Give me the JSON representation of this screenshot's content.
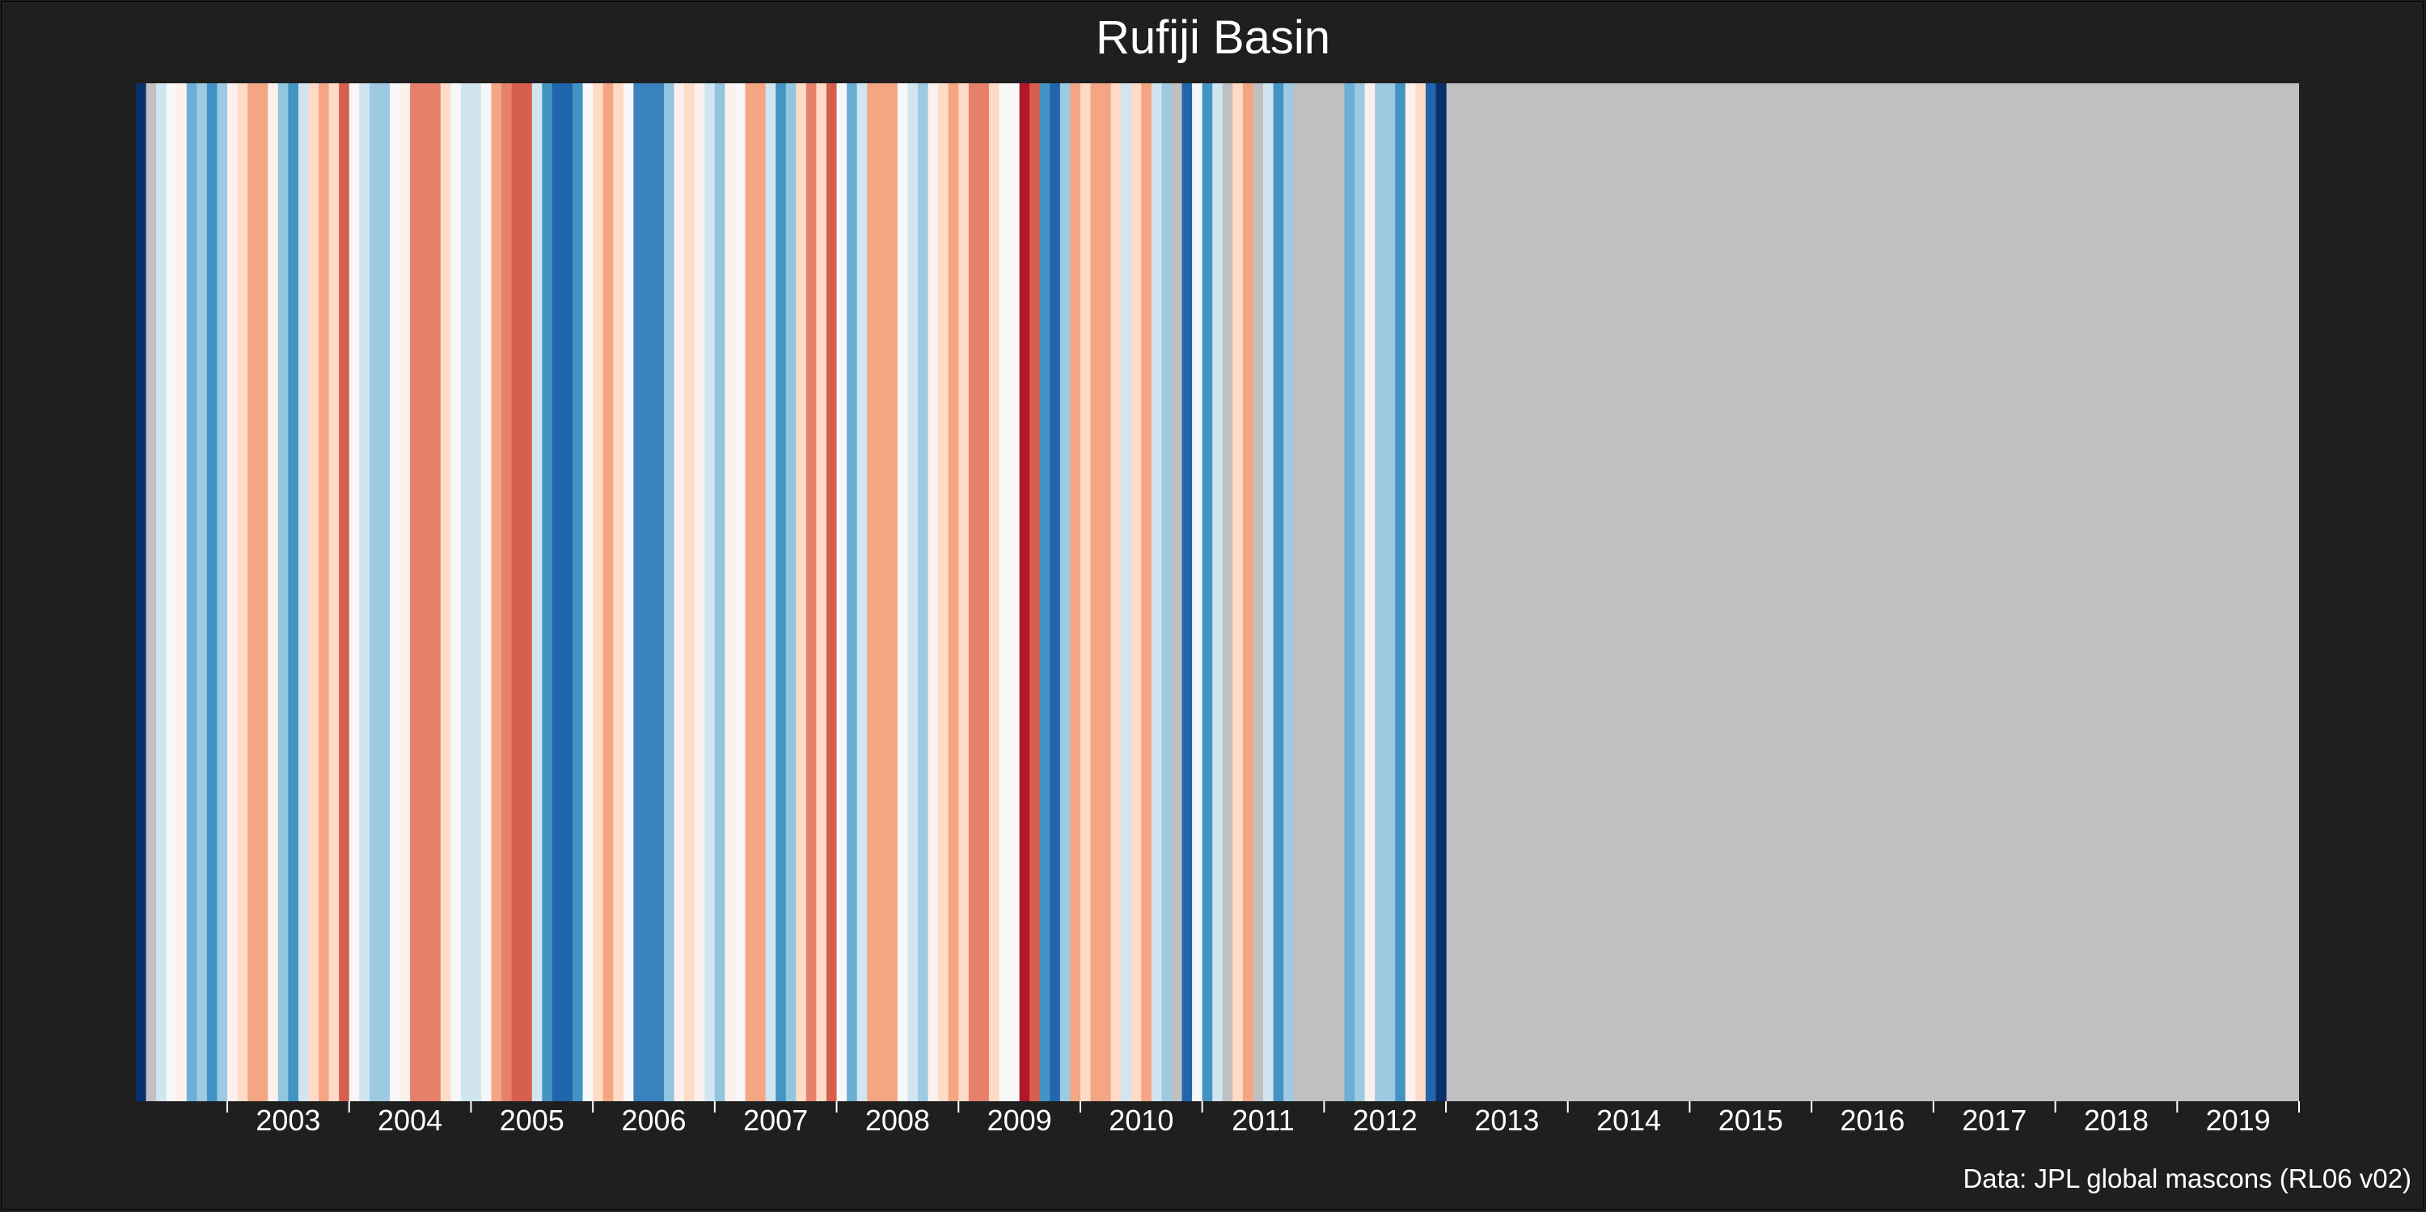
{
  "chart_data": {
    "type": "heatmap",
    "title": "Rufiji Basin",
    "source": "Data: JPL global mascons (RL06 v02)",
    "xlabel": "",
    "ylabel": "",
    "x_tick_labels": [
      "2003",
      "2004",
      "2005",
      "2006",
      "2007",
      "2008",
      "2009",
      "2010",
      "2011",
      "2012",
      "2013",
      "2014",
      "2015",
      "2016",
      "2017",
      "2018",
      "2019"
    ],
    "period_start": "2002-04",
    "period_end": "2020-01",
    "missing_color": "#c0c0c0",
    "stripes": [
      {
        "date": "2002-04",
        "color": "#08306b"
      },
      {
        "date": "2002-05",
        "color": "#c0c0c0"
      },
      {
        "date": "2002-06",
        "color": "#d1e5f0"
      },
      {
        "date": "2002-07",
        "color": "#f7f7f7"
      },
      {
        "date": "2002-08",
        "color": "#fbf1ec"
      },
      {
        "date": "2002-09",
        "color": "#6baed6"
      },
      {
        "date": "2002-10",
        "color": "#9ecae1"
      },
      {
        "date": "2002-11",
        "color": "#4292c6"
      },
      {
        "date": "2002-12",
        "color": "#9ecae1"
      },
      {
        "date": "2003-01",
        "color": "#fbf1ec"
      },
      {
        "date": "2003-02",
        "color": "#fddbc7"
      },
      {
        "date": "2003-03",
        "color": "#f4a582"
      },
      {
        "date": "2003-04",
        "color": "#f4a582"
      },
      {
        "date": "2003-05",
        "color": "#fbf1ec"
      },
      {
        "date": "2003-06",
        "color": "#92c5de"
      },
      {
        "date": "2003-07",
        "color": "#4393c3"
      },
      {
        "date": "2003-08",
        "color": "#d1e5f0"
      },
      {
        "date": "2003-09",
        "color": "#fddbc7"
      },
      {
        "date": "2003-10",
        "color": "#f4a582"
      },
      {
        "date": "2003-11",
        "color": "#fddbc7"
      },
      {
        "date": "2003-12",
        "color": "#d6604d"
      },
      {
        "date": "2004-01",
        "color": "#f7f7f7"
      },
      {
        "date": "2004-02",
        "color": "#d1e5f0"
      },
      {
        "date": "2004-03",
        "color": "#9ecae1"
      },
      {
        "date": "2004-04",
        "color": "#9ecae1"
      },
      {
        "date": "2004-05",
        "color": "#f7f7f7"
      },
      {
        "date": "2004-06",
        "color": "#fbf1ec"
      },
      {
        "date": "2004-07",
        "color": "#e7806a"
      },
      {
        "date": "2004-08",
        "color": "#e7806a"
      },
      {
        "date": "2004-09",
        "color": "#e7806a"
      },
      {
        "date": "2004-10",
        "color": "#fddbc7"
      },
      {
        "date": "2004-11",
        "color": "#f7f7f7"
      },
      {
        "date": "2004-12",
        "color": "#d1e5f0"
      },
      {
        "date": "2005-01",
        "color": "#d1e5f0"
      },
      {
        "date": "2005-02",
        "color": "#f7f7f7"
      },
      {
        "date": "2005-03",
        "color": "#f4a582"
      },
      {
        "date": "2005-04",
        "color": "#e7806a"
      },
      {
        "date": "2005-05",
        "color": "#d6604d"
      },
      {
        "date": "2005-06",
        "color": "#d6604d"
      },
      {
        "date": "2005-07",
        "color": "#d1e5f0"
      },
      {
        "date": "2005-08",
        "color": "#4393c3"
      },
      {
        "date": "2005-09",
        "color": "#2166ac"
      },
      {
        "date": "2005-10",
        "color": "#2166ac"
      },
      {
        "date": "2005-11",
        "color": "#4393c3"
      },
      {
        "date": "2005-12",
        "color": "#f7f7f7"
      },
      {
        "date": "2006-01",
        "color": "#fddbc7"
      },
      {
        "date": "2006-02",
        "color": "#f4a582"
      },
      {
        "date": "2006-03",
        "color": "#fddbc7"
      },
      {
        "date": "2006-04",
        "color": "#f7f7f7"
      },
      {
        "date": "2006-05",
        "color": "#3a82bf"
      },
      {
        "date": "2006-06",
        "color": "#3a82bf"
      },
      {
        "date": "2006-07",
        "color": "#3a82bf"
      },
      {
        "date": "2006-08",
        "color": "#92c5de"
      },
      {
        "date": "2006-09",
        "color": "#fbf1ec"
      },
      {
        "date": "2006-10",
        "color": "#fddbc7"
      },
      {
        "date": "2006-11",
        "color": "#fbf1ec"
      },
      {
        "date": "2006-12",
        "color": "#d1e5f0"
      },
      {
        "date": "2007-01",
        "color": "#92c5de"
      },
      {
        "date": "2007-02",
        "color": "#fbf1ec"
      },
      {
        "date": "2007-03",
        "color": "#f7f7f7"
      },
      {
        "date": "2007-04",
        "color": "#f4a582"
      },
      {
        "date": "2007-05",
        "color": "#f4a582"
      },
      {
        "date": "2007-06",
        "color": "#d1e5f0"
      },
      {
        "date": "2007-07",
        "color": "#4393c3"
      },
      {
        "date": "2007-08",
        "color": "#92c5de"
      },
      {
        "date": "2007-09",
        "color": "#fddbc7"
      },
      {
        "date": "2007-10",
        "color": "#e7806a"
      },
      {
        "date": "2007-11",
        "color": "#fddbc7"
      },
      {
        "date": "2007-12",
        "color": "#d6604d"
      },
      {
        "date": "2008-01",
        "color": "#f7f7f7"
      },
      {
        "date": "2008-02",
        "color": "#6baed6"
      },
      {
        "date": "2008-03",
        "color": "#d1e5f0"
      },
      {
        "date": "2008-04",
        "color": "#f4a582"
      },
      {
        "date": "2008-05",
        "color": "#f4a582"
      },
      {
        "date": "2008-06",
        "color": "#f4a582"
      },
      {
        "date": "2008-07",
        "color": "#f7f7f7"
      },
      {
        "date": "2008-08",
        "color": "#d1e5f0"
      },
      {
        "date": "2008-09",
        "color": "#9ecae1"
      },
      {
        "date": "2008-10",
        "color": "#fbf1ec"
      },
      {
        "date": "2008-11",
        "color": "#fddbc7"
      },
      {
        "date": "2008-12",
        "color": "#f4a582"
      },
      {
        "date": "2009-01",
        "color": "#fddbc7"
      },
      {
        "date": "2009-02",
        "color": "#e7806a"
      },
      {
        "date": "2009-03",
        "color": "#e7806a"
      },
      {
        "date": "2009-04",
        "color": "#fddbc7"
      },
      {
        "date": "2009-05",
        "color": "#f7f7f7"
      },
      {
        "date": "2009-06",
        "color": "#f7f7f7"
      },
      {
        "date": "2009-07",
        "color": "#b2182b"
      },
      {
        "date": "2009-08",
        "color": "#d6604d"
      },
      {
        "date": "2009-09",
        "color": "#4393c3"
      },
      {
        "date": "2009-10",
        "color": "#2166ac"
      },
      {
        "date": "2009-11",
        "color": "#9ecae1"
      },
      {
        "date": "2009-12",
        "color": "#f4a582"
      },
      {
        "date": "2010-01",
        "color": "#fddbc7"
      },
      {
        "date": "2010-02",
        "color": "#f4a582"
      },
      {
        "date": "2010-03",
        "color": "#f4a582"
      },
      {
        "date": "2010-04",
        "color": "#fddbc7"
      },
      {
        "date": "2010-05",
        "color": "#d1e5f0"
      },
      {
        "date": "2010-06",
        "color": "#fddbc7"
      },
      {
        "date": "2010-07",
        "color": "#f4a582"
      },
      {
        "date": "2010-08",
        "color": "#d1e5f0"
      },
      {
        "date": "2010-09",
        "color": "#9ecae1"
      },
      {
        "date": "2010-10",
        "color": "#c0c0c0"
      },
      {
        "date": "2010-11",
        "color": "#2166ac"
      },
      {
        "date": "2010-12",
        "color": "#f7f7f7"
      },
      {
        "date": "2011-01",
        "color": "#4393c3"
      },
      {
        "date": "2011-02",
        "color": "#d1e5f0"
      },
      {
        "date": "2011-03",
        "color": "#c0c0c0"
      },
      {
        "date": "2011-04",
        "color": "#fddbc7"
      },
      {
        "date": "2011-05",
        "color": "#f4a582"
      },
      {
        "date": "2011-06",
        "color": "#c0c0c0"
      },
      {
        "date": "2011-07",
        "color": "#d1e5f0"
      },
      {
        "date": "2011-08",
        "color": "#4393c3"
      },
      {
        "date": "2011-09",
        "color": "#9ecae1"
      },
      {
        "date": "2011-10",
        "color": "#c0c0c0"
      },
      {
        "date": "2011-11",
        "color": "#c0c0c0"
      },
      {
        "date": "2011-12",
        "color": "#c0c0c0"
      },
      {
        "date": "2012-01",
        "color": "#c0c0c0"
      },
      {
        "date": "2012-02",
        "color": "#c0c0c0"
      },
      {
        "date": "2012-03",
        "color": "#6baed6"
      },
      {
        "date": "2012-04",
        "color": "#9ecae1"
      },
      {
        "date": "2012-05",
        "color": "#fbf1ec"
      },
      {
        "date": "2012-06",
        "color": "#9ecae1"
      },
      {
        "date": "2012-07",
        "color": "#9ecae1"
      },
      {
        "date": "2012-08",
        "color": "#4393c3"
      },
      {
        "date": "2012-09",
        "color": "#fbf1ec"
      },
      {
        "date": "2012-10",
        "color": "#fddbc7"
      },
      {
        "date": "2012-11",
        "color": "#2166ac"
      },
      {
        "date": "2012-12",
        "color": "#08306b"
      }
    ]
  }
}
